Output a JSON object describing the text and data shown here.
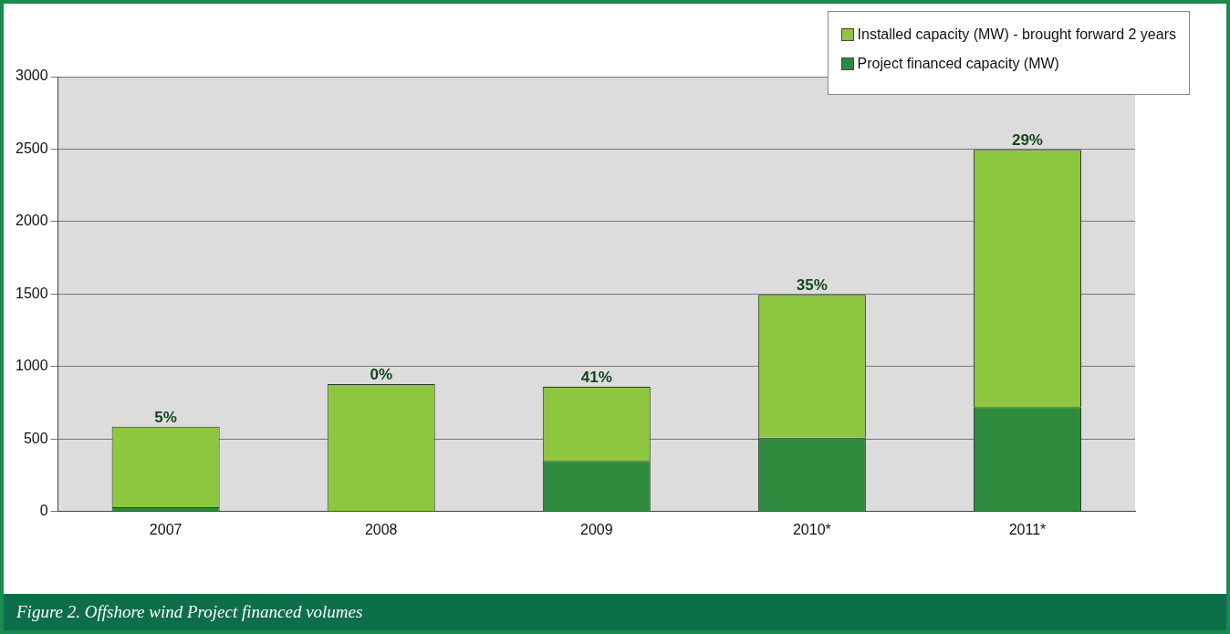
{
  "chart_data": {
    "type": "bar",
    "stacked": true,
    "categories": [
      "2007",
      "2008",
      "2009",
      "2010*",
      "2011*"
    ],
    "series": [
      {
        "name": "Project financed capacity (MW)",
        "color": "#2e8b3e",
        "values": [
          30,
          0,
          350,
          510,
          720
        ]
      },
      {
        "name": "Installed capacity (MW) - brought forward 2 years",
        "color": "#8dc63f",
        "values": [
          555,
          880,
          510,
          985,
          1775
        ]
      }
    ],
    "ylim": [
      0,
      3000
    ],
    "yticks": [
      0,
      500,
      1000,
      1500,
      2000,
      2500,
      3000
    ],
    "grid": "y",
    "legend": "top right",
    "annotations": [
      "Figure 2. Offshore wind Project financed volumes",
      {
        "text": "5%",
        "x": "2007",
        "y": 585
      },
      {
        "text": "0%",
        "x": "2008",
        "y": 880
      },
      {
        "text": "41%",
        "x": "2009",
        "y": 860
      },
      {
        "text": "35%",
        "x": "2010*",
        "y": 1495
      },
      {
        "text": "29%",
        "x": "2011*",
        "y": 2495
      }
    ]
  }
}
